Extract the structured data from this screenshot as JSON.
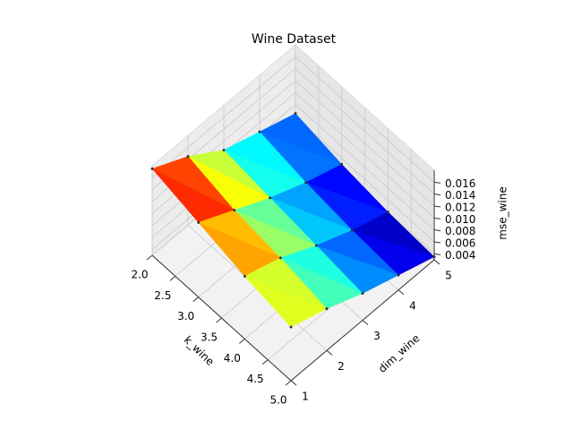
{
  "chart_data": {
    "type": "trisurf",
    "title": "Wine Dataset",
    "xlabel": "k_wine",
    "ylabel": "dim_wine",
    "zlabel": "mse_wine",
    "colormap": "jet",
    "x": [
      2,
      2,
      2,
      2,
      2,
      3,
      3,
      3,
      3,
      3,
      4,
      4,
      4,
      4,
      4,
      5,
      5,
      5,
      5,
      5
    ],
    "y": [
      1,
      2,
      3,
      4,
      5,
      1,
      2,
      3,
      4,
      5,
      1,
      2,
      3,
      4,
      5,
      1,
      2,
      3,
      4,
      5
    ],
    "z": [
      0.0175,
      0.0145,
      0.0105,
      0.0085,
      0.0065,
      0.0155,
      0.0125,
      0.0095,
      0.007,
      0.005,
      0.0135,
      0.0115,
      0.0085,
      0.006,
      0.004,
      0.012,
      0.01,
      0.0075,
      0.0055,
      0.0035
    ],
    "xlim": [
      2,
      5
    ],
    "ylim": [
      1,
      5
    ],
    "zlim": [
      0.003,
      0.018
    ],
    "xticks": [
      {
        "value": 2,
        "label": "2.0"
      },
      {
        "value": 2.5,
        "label": "2.5"
      },
      {
        "value": 3,
        "label": "3.0"
      },
      {
        "value": 3.5,
        "label": "3.5"
      },
      {
        "value": 4,
        "label": "4.0"
      },
      {
        "value": 4.5,
        "label": "4.5"
      },
      {
        "value": 5,
        "label": "5.0"
      }
    ],
    "yticks": [
      1,
      2,
      3,
      4,
      5
    ],
    "zticks": [
      0.004,
      0.006,
      0.008,
      {
        "value": 0.01,
        "label": "0.010"
      },
      0.012,
      0.014,
      0.016
    ],
    "grid": true
  }
}
